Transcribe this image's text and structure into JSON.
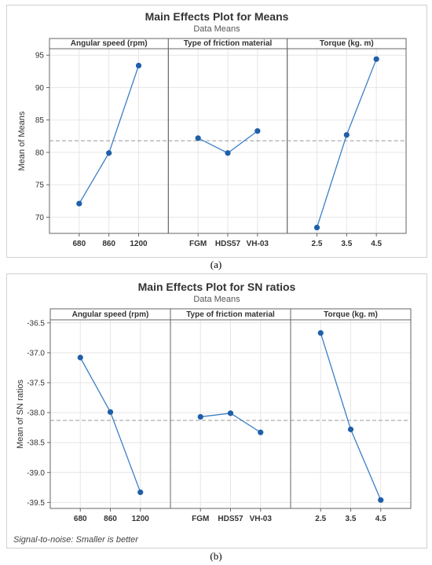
{
  "figures": {
    "a": {
      "title": "Main Effects Plot for Means",
      "subtitle": "Data Means",
      "caption": "(a)"
    },
    "b": {
      "title": "Main Effects Plot for SN ratios",
      "subtitle": "Data Means",
      "caption": "(b)",
      "footnote": "Signal-to-noise: Smaller is better"
    }
  },
  "colors": {
    "line": "#3a7fc6",
    "marker": "#1f5fa8",
    "reference": "#999999",
    "grid": "#e6e6e6",
    "header_bg": "#ffffff"
  },
  "chart_data": [
    {
      "type": "line",
      "title": "Main Effects Plot for Means",
      "subtitle": "Data Means",
      "ylabel": "Mean of Means",
      "ylim": [
        67.5,
        96
      ],
      "yticks": [
        "70",
        "75",
        "80",
        "85",
        "90",
        "95"
      ],
      "reference_line": 81.8,
      "panels": [
        {
          "name": "Angular speed (rpm)",
          "categories": [
            "680",
            "860",
            "1200"
          ],
          "values": [
            72.1,
            79.9,
            93.4
          ]
        },
        {
          "name": "Type of friction material",
          "categories": [
            "FGM",
            "HDS57",
            "VH-03"
          ],
          "values": [
            82.2,
            79.9,
            83.3
          ]
        },
        {
          "name": "Torque (kg. m)",
          "categories": [
            "2.5",
            "3.5",
            "4.5"
          ],
          "values": [
            68.4,
            82.7,
            94.4
          ]
        }
      ]
    },
    {
      "type": "line",
      "title": "Main Effects Plot for SN ratios",
      "subtitle": "Data Means",
      "ylabel": "Mean of SN ratios",
      "ylim": [
        -39.6,
        -36.45
      ],
      "yticks": [
        "-36.5",
        "-37.0",
        "-37.5",
        "-38.0",
        "-38.5",
        "-39.0",
        "-39.5"
      ],
      "reference_line": -38.13,
      "panels": [
        {
          "name": "Angular speed (rpm)",
          "categories": [
            "680",
            "860",
            "1200"
          ],
          "values": [
            -37.08,
            -37.99,
            -39.33
          ]
        },
        {
          "name": "Type of friction material",
          "categories": [
            "FGM",
            "HDS57",
            "VH-03"
          ],
          "values": [
            -38.07,
            -38.01,
            -38.33
          ]
        },
        {
          "name": "Torque (kg. m)",
          "categories": [
            "2.5",
            "3.5",
            "4.5"
          ],
          "values": [
            -36.67,
            -38.28,
            -39.46
          ]
        }
      ]
    }
  ]
}
